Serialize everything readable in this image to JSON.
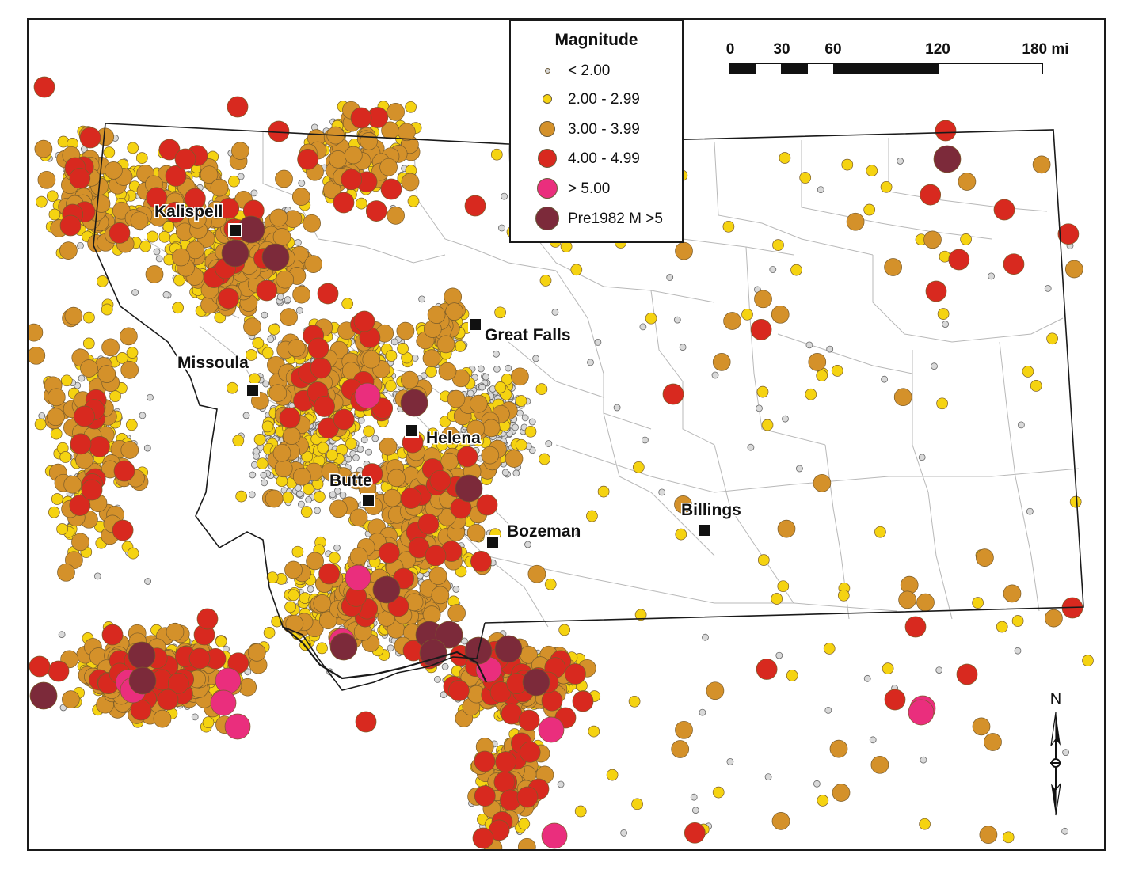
{
  "legend": {
    "title": "Magnitude",
    "items": [
      {
        "label": "< 2.00",
        "color": "#d9d9d9",
        "class": "lt2"
      },
      {
        "label": "2.00 - 2.99",
        "color": "#f5d311",
        "class": "m2"
      },
      {
        "label": "3.00 - 3.99",
        "color": "#d4912a",
        "class": "m3"
      },
      {
        "label": "4.00 - 4.99",
        "color": "#d8291f",
        "class": "m4"
      },
      {
        "label": "> 5.00",
        "color": "#ea2e7d",
        "class": "m5"
      },
      {
        "label": "Pre1982 M >5",
        "color": "#7c2a3a",
        "class": "pre"
      }
    ]
  },
  "scale_bar": {
    "ticks": [
      "0",
      "30",
      "60",
      "120",
      "180 mi"
    ]
  },
  "north_arrow": {
    "label": "N"
  },
  "cities": [
    {
      "name": "Kalispell"
    },
    {
      "name": "Missoula"
    },
    {
      "name": "Great Falls"
    },
    {
      "name": "Helena"
    },
    {
      "name": "Butte"
    },
    {
      "name": "Bozeman"
    },
    {
      "name": "Billings"
    }
  ],
  "colors": {
    "lt2": "#d9d9d9",
    "m2": "#f5d311",
    "m3": "#d4912a",
    "m4": "#d8291f",
    "m5": "#ea2e7d",
    "pre": "#7c2a3a",
    "state_border": "#1a1a1a",
    "county_lines": "#b8b8b8"
  }
}
